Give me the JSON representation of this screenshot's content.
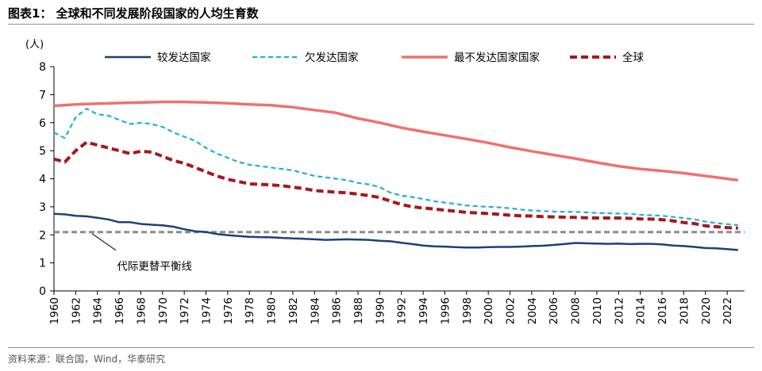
{
  "title": "图表1： 全球和不同发展阶段国家的人均生育数",
  "source": "资料来源：联合国，Wind，华泰研究",
  "colors": {
    "more_developed": "#1f3f7a",
    "less_developed": "#1fb0d8",
    "least_developed": "#f07070",
    "world": "#a8171c",
    "replacement": "#8c8c8c",
    "rule": "#7f8fa6"
  },
  "chart_data": {
    "type": "line",
    "ylabel": "(人)",
    "ylim": [
      0,
      8
    ],
    "yticks": [
      0,
      1,
      2,
      3,
      4,
      5,
      6,
      7,
      8
    ],
    "xlim": [
      1960,
      2023
    ],
    "xticks": [
      1960,
      1962,
      1964,
      1966,
      1968,
      1970,
      1972,
      1974,
      1976,
      1978,
      1980,
      1982,
      1984,
      1986,
      1988,
      1990,
      1992,
      1994,
      1996,
      1998,
      2000,
      2002,
      2004,
      2006,
      2008,
      2010,
      2012,
      2014,
      2016,
      2018,
      2020,
      2022
    ],
    "legend_position": "top",
    "series": [
      {
        "name": "较发达国家",
        "style": "solid",
        "x": [
          1960,
          1961,
          1962,
          1963,
          1964,
          1965,
          1966,
          1967,
          1968,
          1969,
          1970,
          1971,
          1972,
          1973,
          1974,
          1975,
          1976,
          1977,
          1978,
          1979,
          1980,
          1981,
          1982,
          1983,
          1984,
          1985,
          1986,
          1987,
          1988,
          1989,
          1990,
          1991,
          1992,
          1993,
          1994,
          1995,
          1996,
          1997,
          1998,
          1999,
          2000,
          2001,
          2002,
          2003,
          2004,
          2005,
          2006,
          2007,
          2008,
          2009,
          2010,
          2011,
          2012,
          2013,
          2014,
          2015,
          2016,
          2017,
          2018,
          2019,
          2020,
          2021,
          2022,
          2023
        ],
        "values": [
          2.75,
          2.73,
          2.68,
          2.66,
          2.61,
          2.55,
          2.45,
          2.45,
          2.39,
          2.36,
          2.34,
          2.29,
          2.2,
          2.13,
          2.1,
          2.03,
          1.99,
          1.96,
          1.93,
          1.92,
          1.91,
          1.89,
          1.87,
          1.86,
          1.84,
          1.82,
          1.83,
          1.84,
          1.83,
          1.82,
          1.79,
          1.77,
          1.72,
          1.67,
          1.62,
          1.59,
          1.58,
          1.56,
          1.55,
          1.55,
          1.56,
          1.57,
          1.57,
          1.58,
          1.6,
          1.61,
          1.64,
          1.67,
          1.71,
          1.7,
          1.69,
          1.68,
          1.69,
          1.67,
          1.68,
          1.68,
          1.66,
          1.62,
          1.6,
          1.57,
          1.53,
          1.52,
          1.49,
          1.46
        ]
      },
      {
        "name": "欠发达国家",
        "style": "dashed",
        "x": [
          1960,
          1961,
          1962,
          1963,
          1964,
          1965,
          1966,
          1967,
          1968,
          1969,
          1970,
          1971,
          1972,
          1973,
          1974,
          1975,
          1976,
          1977,
          1978,
          1979,
          1980,
          1981,
          1982,
          1983,
          1984,
          1985,
          1986,
          1987,
          1988,
          1989,
          1990,
          1991,
          1992,
          1993,
          1994,
          1995,
          1996,
          1997,
          1998,
          1999,
          2000,
          2001,
          2002,
          2003,
          2004,
          2005,
          2006,
          2007,
          2008,
          2009,
          2010,
          2011,
          2012,
          2013,
          2014,
          2015,
          2016,
          2017,
          2018,
          2019,
          2020,
          2021,
          2022,
          2023
        ],
        "values": [
          5.65,
          5.45,
          6.2,
          6.5,
          6.3,
          6.25,
          6.1,
          5.95,
          6.0,
          5.95,
          5.85,
          5.65,
          5.5,
          5.35,
          5.1,
          4.9,
          4.75,
          4.6,
          4.5,
          4.45,
          4.4,
          4.35,
          4.3,
          4.2,
          4.1,
          4.05,
          4.0,
          3.95,
          3.85,
          3.8,
          3.7,
          3.5,
          3.4,
          3.35,
          3.28,
          3.2,
          3.15,
          3.1,
          3.05,
          3.02,
          3.0,
          2.98,
          2.95,
          2.9,
          2.87,
          2.85,
          2.83,
          2.82,
          2.82,
          2.8,
          2.78,
          2.77,
          2.76,
          2.75,
          2.72,
          2.7,
          2.68,
          2.64,
          2.6,
          2.55,
          2.47,
          2.42,
          2.38,
          2.35
        ]
      },
      {
        "name": "最不发达国家国家",
        "style": "solid-thick",
        "x": [
          1960,
          1962,
          1964,
          1966,
          1968,
          1970,
          1972,
          1974,
          1976,
          1978,
          1980,
          1982,
          1984,
          1986,
          1988,
          1990,
          1992,
          1994,
          1996,
          1998,
          2000,
          2002,
          2004,
          2006,
          2008,
          2010,
          2012,
          2014,
          2016,
          2018,
          2020,
          2022,
          2023
        ],
        "values": [
          6.6,
          6.65,
          6.68,
          6.7,
          6.72,
          6.74,
          6.74,
          6.72,
          6.69,
          6.65,
          6.62,
          6.55,
          6.45,
          6.35,
          6.15,
          6.0,
          5.82,
          5.68,
          5.55,
          5.42,
          5.28,
          5.12,
          4.98,
          4.85,
          4.72,
          4.58,
          4.45,
          4.35,
          4.28,
          4.2,
          4.1,
          4.0,
          3.95
        ]
      },
      {
        "name": "全球",
        "style": "dashed-thick",
        "x": [
          1960,
          1961,
          1962,
          1963,
          1964,
          1965,
          1966,
          1967,
          1968,
          1969,
          1970,
          1971,
          1972,
          1973,
          1974,
          1975,
          1976,
          1977,
          1978,
          1979,
          1980,
          1981,
          1982,
          1983,
          1984,
          1985,
          1986,
          1987,
          1988,
          1989,
          1990,
          1991,
          1992,
          1993,
          1994,
          1995,
          1996,
          1997,
          1998,
          1999,
          2000,
          2001,
          2002,
          2003,
          2004,
          2005,
          2006,
          2007,
          2008,
          2009,
          2010,
          2011,
          2012,
          2013,
          2014,
          2015,
          2016,
          2017,
          2018,
          2019,
          2020,
          2021,
          2022,
          2023
        ],
        "values": [
          4.7,
          4.6,
          5.0,
          5.3,
          5.2,
          5.1,
          5.0,
          4.9,
          4.98,
          4.95,
          4.8,
          4.65,
          4.55,
          4.4,
          4.25,
          4.1,
          3.98,
          3.9,
          3.82,
          3.8,
          3.78,
          3.75,
          3.7,
          3.65,
          3.58,
          3.55,
          3.52,
          3.5,
          3.45,
          3.4,
          3.33,
          3.2,
          3.08,
          3.0,
          2.96,
          2.92,
          2.88,
          2.84,
          2.8,
          2.78,
          2.76,
          2.73,
          2.7,
          2.68,
          2.67,
          2.65,
          2.64,
          2.63,
          2.62,
          2.61,
          2.6,
          2.6,
          2.6,
          2.59,
          2.57,
          2.56,
          2.54,
          2.5,
          2.44,
          2.4,
          2.32,
          2.29,
          2.26,
          2.24
        ]
      }
    ],
    "reference_line": {
      "label": "代际更替平衡线",
      "value": 2.1
    }
  }
}
